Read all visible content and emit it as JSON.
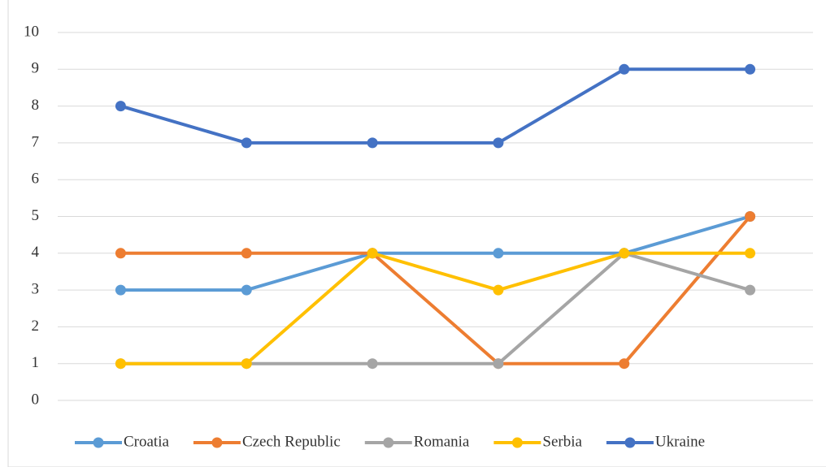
{
  "chart_data": {
    "type": "line",
    "categories": [
      null,
      null,
      null,
      null,
      null,
      null
    ],
    "series": [
      {
        "name": "Croatia",
        "color": "#5b9bd5",
        "values": [
          3,
          3,
          4,
          4,
          4,
          5
        ]
      },
      {
        "name": "Czech Republic",
        "color": "#ed7d31",
        "values": [
          4,
          4,
          4,
          1,
          1,
          5
        ]
      },
      {
        "name": "Romania",
        "color": "#a5a5a5",
        "values": [
          1,
          1,
          1,
          1,
          4,
          3
        ]
      },
      {
        "name": "Serbia",
        "color": "#ffc000",
        "values": [
          1,
          1,
          4,
          3,
          4,
          4
        ]
      },
      {
        "name": "Ukraine",
        "color": "#4472c4",
        "values": [
          8,
          7,
          7,
          7,
          9,
          9
        ]
      }
    ],
    "ylim": [
      0,
      10
    ],
    "yticks": [
      0,
      1,
      2,
      3,
      4,
      5,
      6,
      7,
      8,
      9,
      10
    ],
    "grid": true,
    "legend": "bottom"
  }
}
